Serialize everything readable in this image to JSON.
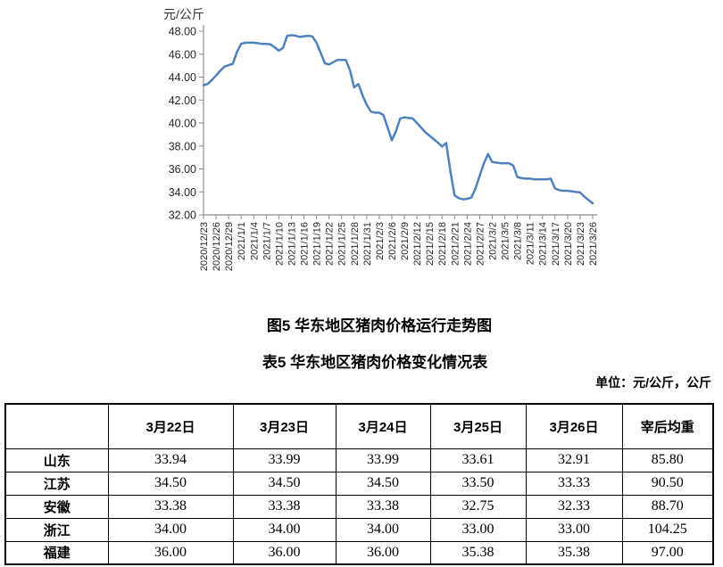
{
  "figure_title": "图5 华东地区猪肉价格运行走势图",
  "table_title": "表5 华东地区猪肉价格变化情况表",
  "unit_note": "单位：元/公斤，公斤",
  "chart_data": {
    "type": "line",
    "title": "图5 华东地区猪肉价格运行走势图",
    "ylabel": "元/公斤",
    "ylim": [
      32,
      48
    ],
    "ytick_step": 2,
    "y_tick_labels": [
      "48.00",
      "46.00",
      "44.00",
      "42.00",
      "40.00",
      "38.00",
      "36.00",
      "34.00",
      "32.00"
    ],
    "x_label_every": 3,
    "x_tick_labels": [
      "2020/12/23",
      "2020/12/26",
      "2020/12/29",
      "2021/1/1",
      "2021/1/4",
      "2021/1/7",
      "2021/1/10",
      "2021/1/13",
      "2021/1/16",
      "2021/1/19",
      "2021/1/22",
      "2021/1/25",
      "2021/1/28",
      "2021/1/31",
      "2021/2/3",
      "2021/2/6",
      "2021/2/9",
      "2021/2/12",
      "2021/2/15",
      "2021/2/18",
      "2021/2/21",
      "2021/2/24",
      "2021/2/27",
      "2021/3/2",
      "2021/3/5",
      "2021/3/8",
      "2021/3/11",
      "2021/3/14",
      "2021/3/17",
      "2021/3/20",
      "2021/3/23",
      "2021/3/26"
    ],
    "x": [
      "2020/12/23",
      "2020/12/24",
      "2020/12/25",
      "2020/12/26",
      "2020/12/27",
      "2020/12/28",
      "2020/12/29",
      "2020/12/30",
      "2020/12/31",
      "2021/1/1",
      "2021/1/2",
      "2021/1/3",
      "2021/1/4",
      "2021/1/5",
      "2021/1/6",
      "2021/1/7",
      "2021/1/8",
      "2021/1/9",
      "2021/1/10",
      "2021/1/11",
      "2021/1/12",
      "2021/1/13",
      "2021/1/14",
      "2021/1/15",
      "2021/1/16",
      "2021/1/17",
      "2021/1/18",
      "2021/1/19",
      "2021/1/20",
      "2021/1/21",
      "2021/1/22",
      "2021/1/23",
      "2021/1/24",
      "2021/1/25",
      "2021/1/26",
      "2021/1/27",
      "2021/1/28",
      "2021/1/29",
      "2021/1/30",
      "2021/1/31",
      "2021/2/1",
      "2021/2/2",
      "2021/2/3",
      "2021/2/4",
      "2021/2/5",
      "2021/2/6",
      "2021/2/7",
      "2021/2/8",
      "2021/2/9",
      "2021/2/10",
      "2021/2/11",
      "2021/2/12",
      "2021/2/13",
      "2021/2/14",
      "2021/2/15",
      "2021/2/16",
      "2021/2/17",
      "2021/2/18",
      "2021/2/19",
      "2021/2/20",
      "2021/2/21",
      "2021/2/22",
      "2021/2/23",
      "2021/2/24",
      "2021/2/25",
      "2021/2/26",
      "2021/2/27",
      "2021/2/28",
      "2021/3/1",
      "2021/3/2",
      "2021/3/3",
      "2021/3/4",
      "2021/3/5",
      "2021/3/6",
      "2021/3/7",
      "2021/3/8",
      "2021/3/9",
      "2021/3/10",
      "2021/3/11",
      "2021/3/12",
      "2021/3/13",
      "2021/3/14",
      "2021/3/15",
      "2021/3/16",
      "2021/3/17",
      "2021/3/18",
      "2021/3/19",
      "2021/3/20",
      "2021/3/21",
      "2021/3/22",
      "2021/3/23",
      "2021/3/24",
      "2021/3/25",
      "2021/3/26"
    ],
    "values": [
      43.3,
      43.4,
      43.75,
      44.15,
      44.55,
      44.9,
      45.05,
      45.15,
      46.2,
      46.9,
      47.0,
      47.0,
      47.0,
      46.95,
      46.9,
      46.9,
      46.85,
      46.6,
      46.3,
      46.55,
      47.6,
      47.65,
      47.6,
      47.5,
      47.55,
      47.6,
      47.55,
      47.0,
      46.1,
      45.2,
      45.1,
      45.3,
      45.5,
      45.5,
      45.5,
      44.6,
      43.1,
      43.4,
      42.4,
      41.6,
      41.0,
      40.9,
      40.9,
      40.7,
      39.6,
      38.5,
      39.3,
      40.4,
      40.5,
      40.45,
      40.4,
      40.0,
      39.6,
      39.2,
      38.9,
      38.6,
      38.3,
      37.95,
      38.25,
      35.8,
      33.7,
      33.45,
      33.35,
      33.4,
      33.5,
      34.3,
      35.4,
      36.5,
      37.3,
      36.6,
      36.55,
      36.5,
      36.5,
      36.5,
      36.3,
      35.3,
      35.2,
      35.15,
      35.15,
      35.1,
      35.1,
      35.1,
      35.1,
      35.15,
      34.3,
      34.15,
      34.1,
      34.1,
      34.05,
      34.0,
      33.95,
      33.6,
      33.3,
      33.0
    ],
    "line_color": "#4F81BD",
    "axis_color": "#8C8C8C",
    "label_color": "#262626",
    "grid": false,
    "legend": null
  },
  "table": {
    "headers": [
      "",
      "3月22日",
      "3月23日",
      "3月24日",
      "3月25日",
      "3月26日",
      "宰后均重"
    ],
    "rows": [
      {
        "name": "山东",
        "values": [
          "33.94",
          "33.99",
          "33.99",
          "33.61",
          "32.91",
          "85.80"
        ]
      },
      {
        "name": "江苏",
        "values": [
          "34.50",
          "34.50",
          "34.50",
          "33.50",
          "33.33",
          "90.50"
        ]
      },
      {
        "name": "安徽",
        "values": [
          "33.38",
          "33.38",
          "33.38",
          "32.75",
          "32.33",
          "88.70"
        ]
      },
      {
        "name": "浙江",
        "values": [
          "34.00",
          "34.00",
          "34.00",
          "33.00",
          "33.00",
          "104.25"
        ]
      },
      {
        "name": "福建",
        "values": [
          "36.00",
          "36.00",
          "36.00",
          "35.38",
          "35.38",
          "97.00"
        ]
      }
    ]
  }
}
